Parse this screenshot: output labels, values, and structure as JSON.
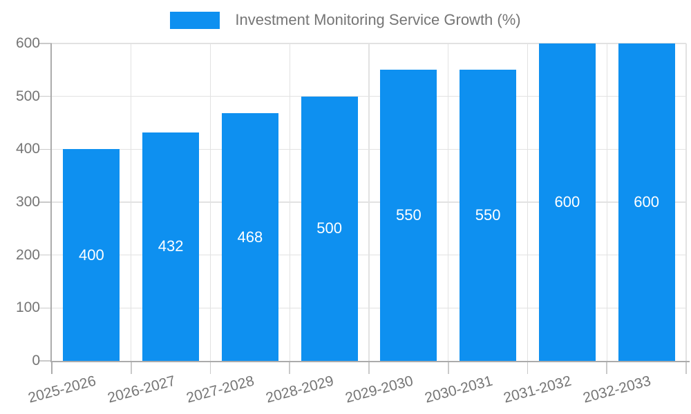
{
  "chart_data": {
    "type": "bar",
    "title": "Investment Monitoring Service Growth (%)",
    "categories": [
      "2025-2026",
      "2026-2027",
      "2027-2028",
      "2028-2029",
      "2029-2030",
      "2030-2031",
      "2031-2032",
      "2032-2033"
    ],
    "values": [
      400,
      432,
      468,
      500,
      550,
      550,
      600,
      600
    ],
    "bar_value_labels": [
      "400",
      "432",
      "468",
      "500",
      "550",
      "550",
      "600",
      "600"
    ],
    "xlabel": "",
    "ylabel": "",
    "ylim": [
      0,
      600
    ],
    "yticks": [
      0,
      100,
      200,
      300,
      400,
      500,
      600
    ],
    "grid": true,
    "legend_position": "top",
    "colors": {
      "bar": "#0e90f0",
      "bar_label": "#ffffff",
      "axis_text": "#757575",
      "grid_line": "#e2e2e2",
      "tick_line": "#c9c9c9",
      "axis_line": "#ababab",
      "background": "#ffffff"
    }
  }
}
